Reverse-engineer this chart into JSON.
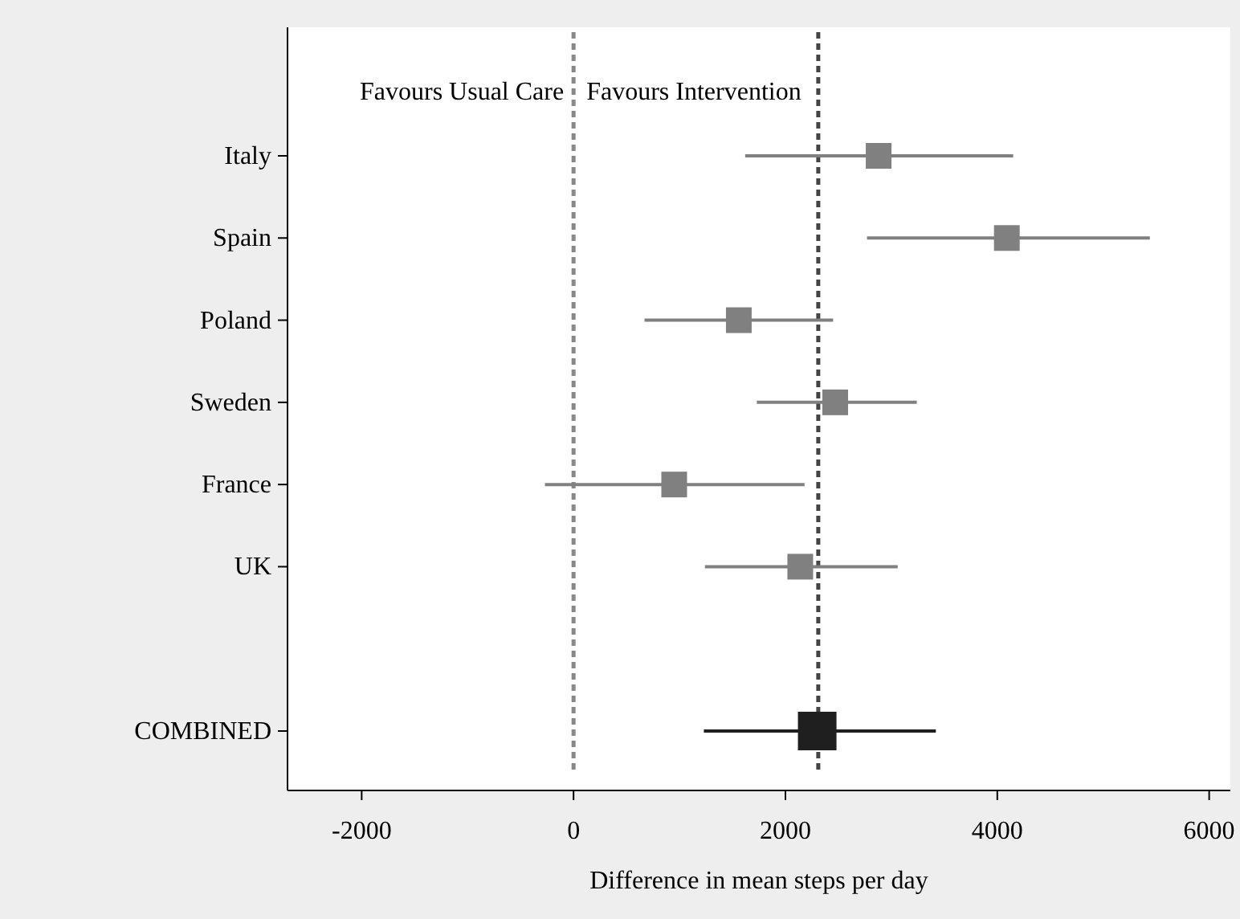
{
  "chart_data": {
    "type": "scatter",
    "orientation": "horizontal",
    "marker": "square",
    "categories": [
      "Italy",
      "Spain",
      "Poland",
      "Sweden",
      "France",
      "UK",
      null,
      "COMBINED"
    ],
    "series": [
      {
        "color": "#808080",
        "values": [
          2880,
          4090,
          1560,
          2470,
          950,
          2140,
          null,
          null
        ],
        "errors": [
          [
            1620,
            4150
          ],
          [
            2770,
            5440
          ],
          [
            670,
            2450
          ],
          [
            1730,
            3240
          ],
          [
            -270,
            2180
          ],
          [
            1240,
            3060
          ],
          null,
          null
        ]
      },
      {
        "color": "#1f1f1f",
        "values": [
          null,
          null,
          null,
          null,
          null,
          null,
          null,
          2300
        ],
        "errors": [
          null,
          null,
          null,
          null,
          null,
          null,
          null,
          [
            1230,
            3420
          ]
        ]
      }
    ],
    "xlim": [
      -2700,
      6200
    ],
    "xticks": [
      -2000,
      0,
      2000,
      4000,
      6000
    ],
    "xlabel": "Difference in mean steps per day",
    "ref_lines": [
      {
        "axis": "x",
        "value": 0,
        "color": "#888888",
        "line_style": "dashed"
      },
      {
        "axis": "x",
        "value": 2310,
        "color": "#444444",
        "line_style": "dashed"
      }
    ],
    "annotations": [
      "Favours Usual Care",
      "Favours Intervention"
    ]
  }
}
